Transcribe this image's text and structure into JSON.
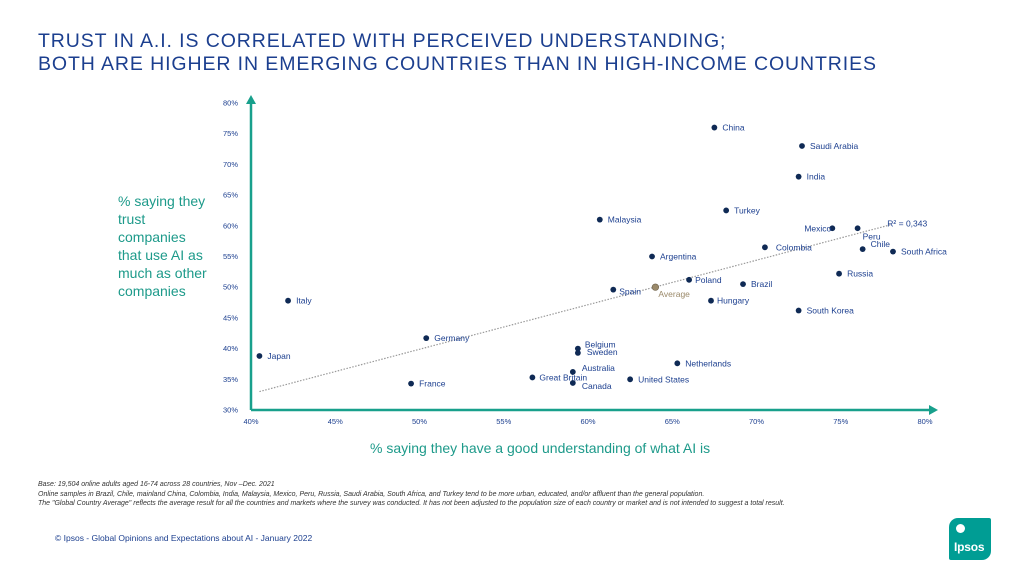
{
  "title_lines": [
    "TRUST IN A.I. IS CORRELATED WITH PERCEIVED UNDERSTANDING;",
    "BOTH ARE HIGHER IN EMERGING COUNTRIES THAN IN HIGH-INCOME COUNTRIES"
  ],
  "chart_data": {
    "type": "scatter",
    "title": "TRUST IN A.I. IS CORRELATED WITH PERCEIVED UNDERSTANDING; BOTH ARE HIGHER IN EMERGING COUNTRIES THAN IN HIGH-INCOME COUNTRIES",
    "xlabel": "% saying they have a good understanding of what AI is",
    "ylabel": "% saying they trust companies that use AI as much as other companies",
    "xlim": [
      40,
      80
    ],
    "ylim": [
      30,
      80
    ],
    "xticks": [
      "40%",
      "45%",
      "50%",
      "55%",
      "60%",
      "65%",
      "70%",
      "75%",
      "80%"
    ],
    "yticks": [
      "30%",
      "35%",
      "40%",
      "45%",
      "50%",
      "55%",
      "60%",
      "65%",
      "70%",
      "75%",
      "80%"
    ],
    "points": [
      {
        "label": "China",
        "x": 67.5,
        "y": 76
      },
      {
        "label": "Saudi Arabia",
        "x": 72.7,
        "y": 73
      },
      {
        "label": "India",
        "x": 72.5,
        "y": 68
      },
      {
        "label": "Turkey",
        "x": 68.2,
        "y": 62.5
      },
      {
        "label": "Malaysia",
        "x": 60.7,
        "y": 61
      },
      {
        "label": "Mexico",
        "x": 74.5,
        "y": 59.6
      },
      {
        "label": "Peru",
        "x": 76,
        "y": 59.6
      },
      {
        "label": "Chile",
        "x": 76.3,
        "y": 56.2
      },
      {
        "label": "South Africa",
        "x": 78.1,
        "y": 55.8
      },
      {
        "label": "Colombia",
        "x": 70.5,
        "y": 56.5
      },
      {
        "label": "Argentina",
        "x": 63.8,
        "y": 55
      },
      {
        "label": "Russia",
        "x": 74.9,
        "y": 52.2
      },
      {
        "label": "Poland",
        "x": 66,
        "y": 51.2
      },
      {
        "label": "Brazil",
        "x": 69.2,
        "y": 50.5
      },
      {
        "label": "Spain",
        "x": 61.5,
        "y": 49.6
      },
      {
        "label": "Average",
        "x": 64,
        "y": 50
      },
      {
        "label": "Hungary",
        "x": 67.3,
        "y": 47.8
      },
      {
        "label": "South Korea",
        "x": 72.5,
        "y": 46.2
      },
      {
        "label": "Italy",
        "x": 42.2,
        "y": 47.8
      },
      {
        "label": "Germany",
        "x": 50.4,
        "y": 41.7
      },
      {
        "label": "Belgium",
        "x": 59.4,
        "y": 40
      },
      {
        "label": "Sweden",
        "x": 59.4,
        "y": 39.3
      },
      {
        "label": "Japan",
        "x": 40.5,
        "y": 38.8
      },
      {
        "label": "Netherlands",
        "x": 65.3,
        "y": 37.6
      },
      {
        "label": "Australia",
        "x": 59.1,
        "y": 36.2
      },
      {
        "label": "Great Britain",
        "x": 56.7,
        "y": 35.3
      },
      {
        "label": "United States",
        "x": 62.5,
        "y": 35
      },
      {
        "label": "Canada",
        "x": 59.1,
        "y": 34.4
      },
      {
        "label": "France",
        "x": 49.5,
        "y": 34.3
      }
    ],
    "trendline": {
      "x": [
        40.5,
        78
      ],
      "y": [
        33,
        60.2
      ],
      "r_squared_label": "R² = 0,343"
    }
  },
  "notes": [
    "Base: 19,504 online adults aged 16-74 across 28 countries, Nov –Dec. 2021",
    "Online samples in Brazil, Chile, mainland China, Colombia, India, Malaysia, Mexico, Peru, Russia, Saudi Arabia, South Africa, and Turkey tend to be more urban, educated, and/or affluent than the general population.",
    "The \"Global Country Average\" reflects the average result for all the countries and markets where the survey was conducted. It has not been adjusted to the population size of each country or market and is not intended to suggest a total result."
  ],
  "footer": "© Ipsos - Global Opinions and Expectations about AI - January 2022",
  "logo_text": "Ipsos",
  "colors": {
    "title": "#1c3f8f",
    "point": "#0f2a55",
    "axis": "#18a08c",
    "average": "#9b8a6a",
    "trend": "#9a9a9a"
  }
}
